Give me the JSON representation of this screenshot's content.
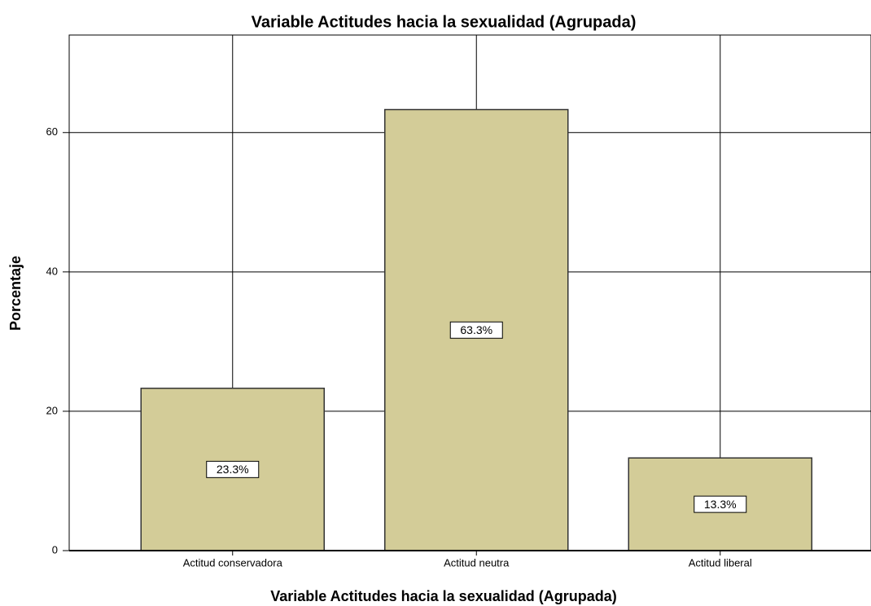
{
  "chart_data": {
    "type": "bar",
    "title": "Variable Actitudes hacia la sexualidad (Agrupada)",
    "x_label": "Variable Actitudes hacia la sexualidad (Agrupada)",
    "y_label": "Porcentaje",
    "categories": [
      "Actitud conservadora",
      "Actitud neutra",
      "Actitud liberal"
    ],
    "values": [
      23.3,
      63.3,
      13.3
    ],
    "value_labels": [
      "23.3%",
      "63.3%",
      "13.3%"
    ],
    "color": "#d3cc98",
    "ylim": [
      0,
      74
    ],
    "yticks": [
      0,
      20,
      40,
      60
    ],
    "grid": true
  }
}
